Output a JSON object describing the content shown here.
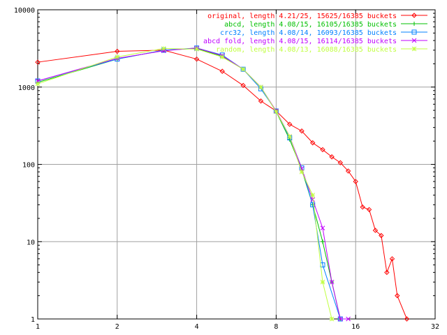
{
  "chart_data": {
    "type": "line",
    "title": "",
    "xlabel": "",
    "ylabel": "",
    "x_scale": "log2",
    "y_scale": "log10",
    "xlim": [
      1,
      32
    ],
    "ylim": [
      1,
      10000
    ],
    "grid": true,
    "legend_position": "top-right",
    "x_ticks": [
      1,
      2,
      4,
      8,
      16,
      32
    ],
    "x_tick_labels": [
      "1",
      "2",
      "4",
      "8",
      "16",
      "32"
    ],
    "y_ticks": [
      1,
      10,
      100,
      1000,
      10000
    ],
    "y_tick_labels": [
      "1",
      "10",
      "100",
      "1000",
      "10000"
    ],
    "series": [
      {
        "name": "original, length 4.21/25, 15625/16385 buckets",
        "color": "#ff0000",
        "marker": "diamond",
        "points": [
          [
            1,
            2100
          ],
          [
            2,
            2900
          ],
          [
            3,
            3000
          ],
          [
            4,
            2300
          ],
          [
            5,
            1600
          ],
          [
            6,
            1050
          ],
          [
            7,
            660
          ],
          [
            8,
            490
          ],
          [
            9,
            330
          ],
          [
            10,
            270
          ],
          [
            11,
            190
          ],
          [
            12,
            155
          ],
          [
            13,
            125
          ],
          [
            14,
            105
          ],
          [
            15,
            82
          ],
          [
            16,
            60
          ],
          [
            17,
            28
          ],
          [
            18,
            26
          ],
          [
            19,
            14
          ],
          [
            20,
            12
          ],
          [
            21,
            4
          ],
          [
            22,
            6
          ],
          [
            23,
            2
          ],
          [
            25,
            1
          ]
        ]
      },
      {
        "name": "abcd, length 4.08/15, 16105/16385 buckets",
        "color": "#00c000",
        "marker": "plus",
        "points": [
          [
            1,
            1150
          ],
          [
            2,
            2300
          ],
          [
            3,
            3000
          ],
          [
            4,
            3150
          ],
          [
            5,
            2500
          ],
          [
            6,
            1700
          ],
          [
            7,
            1000
          ],
          [
            8,
            480
          ],
          [
            9,
            210
          ],
          [
            10,
            85
          ],
          [
            11,
            30
          ],
          [
            12,
            10
          ],
          [
            13,
            3
          ],
          [
            14,
            1
          ]
        ]
      },
      {
        "name": "crc32, length 4.08/14, 16093/16385 buckets",
        "color": "#0080ff",
        "marker": "square",
        "points": [
          [
            1,
            1200
          ],
          [
            2,
            2300
          ],
          [
            3,
            3000
          ],
          [
            4,
            3200
          ],
          [
            5,
            2600
          ],
          [
            6,
            1700
          ],
          [
            7,
            950
          ],
          [
            8,
            490
          ],
          [
            9,
            220
          ],
          [
            10,
            90
          ],
          [
            11,
            30
          ],
          [
            12,
            5
          ],
          [
            14,
            1
          ]
        ]
      },
      {
        "name": "abcd fold, length 4.08/15, 16114/16385 buckets",
        "color": "#c000ff",
        "marker": "cross",
        "points": [
          [
            1,
            1200
          ],
          [
            2,
            2350
          ],
          [
            3,
            2950
          ],
          [
            4,
            3200
          ],
          [
            5,
            2550
          ],
          [
            6,
            1700
          ],
          [
            7,
            1000
          ],
          [
            8,
            490
          ],
          [
            9,
            230
          ],
          [
            10,
            88
          ],
          [
            11,
            35
          ],
          [
            12,
            15
          ],
          [
            13,
            3
          ],
          [
            14,
            1
          ],
          [
            15,
            1
          ]
        ]
      },
      {
        "name": "random, length 4.08/13, 16088/16385 buckets",
        "color": "#c0ff40",
        "marker": "star",
        "points": [
          [
            1,
            1100
          ],
          [
            2,
            2450
          ],
          [
            3,
            3150
          ],
          [
            4,
            3100
          ],
          [
            5,
            2450
          ],
          [
            6,
            1700
          ],
          [
            7,
            1000
          ],
          [
            8,
            480
          ],
          [
            9,
            230
          ],
          [
            10,
            80
          ],
          [
            11,
            40
          ],
          [
            12,
            3
          ],
          [
            13,
            1
          ]
        ]
      }
    ]
  }
}
